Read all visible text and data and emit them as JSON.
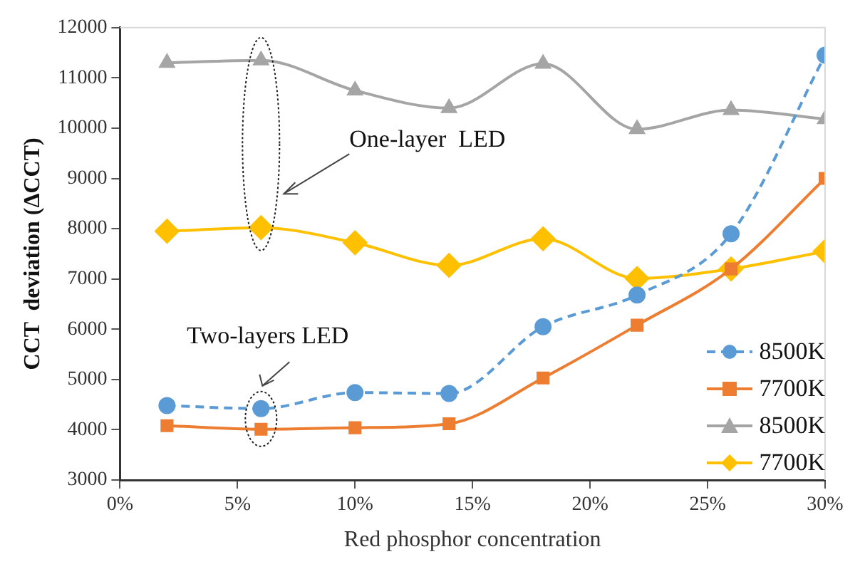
{
  "chart_data": {
    "type": "line",
    "xlabel": "Red phosphor concentration",
    "ylabel": "CCT  deviation (ΔCCT)",
    "x": [
      2,
      6,
      10,
      14,
      18,
      22,
      26,
      30
    ],
    "series": [
      {
        "name": "8500K",
        "color": "#5b9bd5",
        "marker": "circle",
        "line_style": "dashed",
        "values": [
          4480,
          4420,
          4740,
          4720,
          6050,
          6680,
          7900,
          11450
        ]
      },
      {
        "name": "7700K",
        "color": "#ed7d31",
        "marker": "square",
        "line_style": "solid",
        "values": [
          4080,
          4010,
          4040,
          4120,
          5030,
          6080,
          7200,
          9000
        ]
      },
      {
        "name": "8500K",
        "color": "#a5a5a5",
        "marker": "triangle",
        "line_style": "solid",
        "values": [
          11300,
          11350,
          10750,
          10400,
          11280,
          9980,
          10360,
          10180
        ]
      },
      {
        "name": "7700K",
        "color": "#ffc000",
        "marker": "diamond",
        "line_style": "solid",
        "values": [
          7950,
          8020,
          7720,
          7270,
          7800,
          7010,
          7200,
          7550
        ]
      }
    ],
    "xlim": [
      0,
      30
    ],
    "xticks": [
      {
        "value": 0,
        "label": "0%"
      },
      {
        "value": 5,
        "label": "5%"
      },
      {
        "value": 10,
        "label": "10%"
      },
      {
        "value": 15,
        "label": "15%"
      },
      {
        "value": 20,
        "label": "20%"
      },
      {
        "value": 25,
        "label": "25%"
      },
      {
        "value": 30,
        "label": "30%"
      }
    ],
    "ylim": [
      3000,
      12000
    ],
    "yticks": [
      3000,
      4000,
      5000,
      6000,
      7000,
      8000,
      9000,
      10000,
      11000,
      12000
    ],
    "grid": false,
    "legend": "bottom right",
    "annotations": [
      "One-layer  LED",
      "Two-layers LED"
    ]
  }
}
